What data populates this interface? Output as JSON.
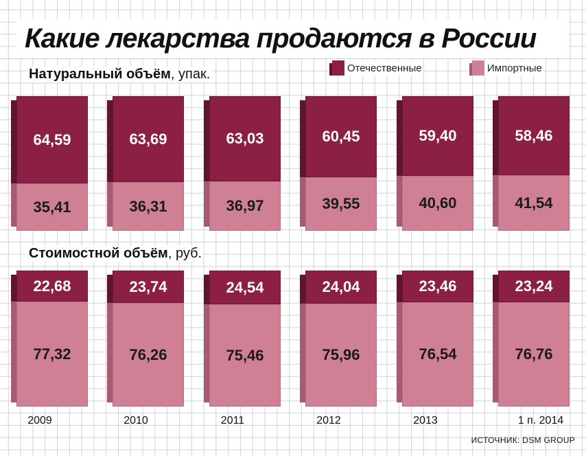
{
  "title": "Какие лекарства продаются в России",
  "legend": {
    "domestic": "Отечественные",
    "imported": "Импортные"
  },
  "colors": {
    "domestic": "#8c1f44",
    "imported": "#cf8095"
  },
  "source": "ИСТОЧНИК: DSM GROUP",
  "chart_data": [
    {
      "type": "bar",
      "stacked": true,
      "label_bold": "Натуральный объём",
      "label_unit": ", упак.",
      "categories": [
        "2009",
        "2010",
        "2011",
        "2012",
        "2013",
        "1 п. 2014"
      ],
      "series": [
        {
          "name": "Отечественные",
          "values": [
            64.59,
            63.69,
            63.03,
            60.45,
            59.4,
            58.46
          ],
          "labels": [
            "64,59",
            "63,69",
            "63,03",
            "60,45",
            "59,40",
            "58,46"
          ]
        },
        {
          "name": "Импортные",
          "values": [
            35.41,
            36.31,
            36.97,
            39.55,
            40.6,
            41.54
          ],
          "labels": [
            "35,41",
            "36,31",
            "36,97",
            "39,55",
            "40,60",
            "41,54"
          ]
        }
      ],
      "ylim": [
        0,
        100
      ]
    },
    {
      "type": "bar",
      "stacked": true,
      "label_bold": "Стоимостной объём",
      "label_unit": ", руб.",
      "categories": [
        "2009",
        "2010",
        "2011",
        "2012",
        "2013",
        "1 п. 2014"
      ],
      "series": [
        {
          "name": "Отечественные",
          "values": [
            22.68,
            23.74,
            24.54,
            24.04,
            23.46,
            23.24
          ],
          "labels": [
            "22,68",
            "23,74",
            "24,54",
            "24,04",
            "23,46",
            "23,24"
          ]
        },
        {
          "name": "Импортные",
          "values": [
            77.32,
            76.26,
            75.46,
            75.96,
            76.54,
            76.76
          ],
          "labels": [
            "77,32",
            "76,26",
            "75,46",
            "75,96",
            "76,54",
            "76,76"
          ]
        }
      ],
      "ylim": [
        0,
        100
      ]
    }
  ]
}
